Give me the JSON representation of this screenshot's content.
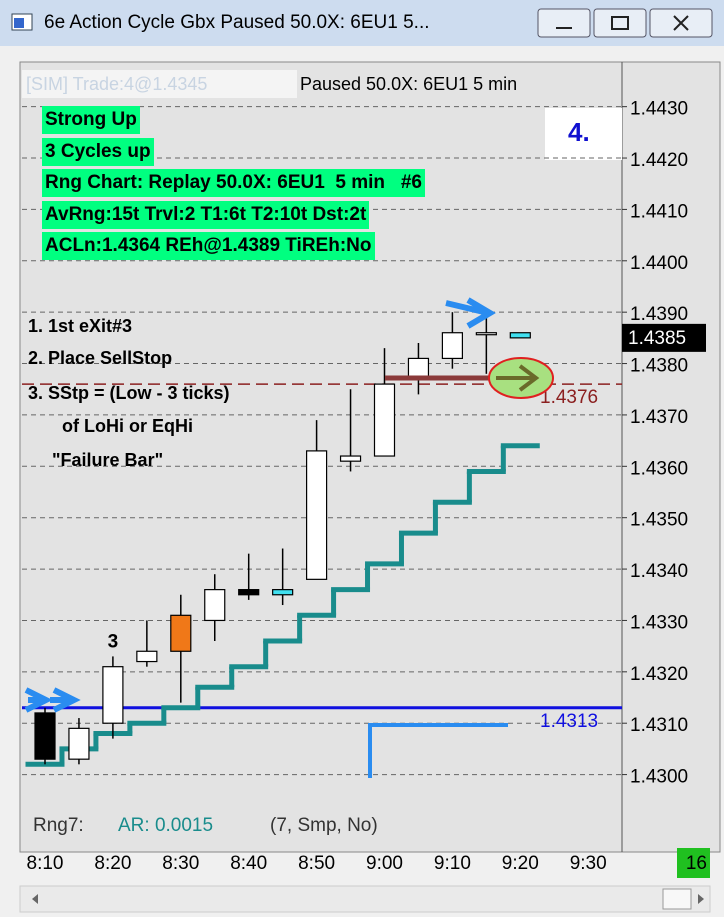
{
  "window": {
    "title": "6e Action Cycle Gbx  Paused 50.0X: 6EU1  5..."
  },
  "chart_data": {
    "type": "candlestick",
    "header": {
      "sim_trade": "[SIM]  Trade:4@1.4345",
      "status": "Paused 50.0X: 6EU1  5 min"
    },
    "info_lines": [
      "Strong Up",
      "3 Cycles up",
      "Rng Chart: Replay 50.0X: 6EU1  5 min   #6",
      "AvRng:15t Trvl:2 T1:6t T2:10t Dst:2t",
      "ACLn:1.4364 REh@1.4389 TiREh:No"
    ],
    "step_label": "4.",
    "annotations": [
      "1. 1st eXit#3",
      "2. Place SellStop",
      "3. SStp = (Low - 3 ticks)",
      "of LoHi or EqHi",
      "\"Failure Bar\""
    ],
    "bar_label": "3",
    "xticks": [
      "8:10",
      "8:20",
      "8:30",
      "8:40",
      "8:50",
      "9:00",
      "9:10",
      "9:20",
      "9:30"
    ],
    "candles": [
      {
        "o": 1.4312,
        "h": 1.4313,
        "l": 1.4302,
        "c": 1.4303,
        "color": "#000000"
      },
      {
        "o": 1.4303,
        "h": 1.4311,
        "l": 1.4302,
        "c": 1.4309,
        "color": "#ffffff"
      },
      {
        "o": 1.431,
        "h": 1.4323,
        "l": 1.4307,
        "c": 1.4321,
        "color": "#ffffff"
      },
      {
        "o": 1.4322,
        "h": 1.433,
        "l": 1.4321,
        "c": 1.4324,
        "color": "#ffffff"
      },
      {
        "o": 1.4331,
        "h": 1.4335,
        "l": 1.4314,
        "c": 1.4324,
        "color": "#f07818"
      },
      {
        "o": 1.433,
        "h": 1.4339,
        "l": 1.4326,
        "c": 1.4336,
        "color": "#ffffff"
      },
      {
        "o": 1.4336,
        "h": 1.4343,
        "l": 1.4334,
        "c": 1.4335,
        "color": "#000000"
      },
      {
        "o": 1.4336,
        "h": 1.4344,
        "l": 1.4333,
        "c": 1.4335,
        "color": "#40e0f0"
      },
      {
        "o": 1.4338,
        "h": 1.4369,
        "l": 1.4338,
        "c": 1.4363,
        "color": "#ffffff"
      },
      {
        "o": 1.4361,
        "h": 1.4375,
        "l": 1.4359,
        "c": 1.4362,
        "color": "#ffffff"
      },
      {
        "o": 1.4362,
        "h": 1.4383,
        "l": 1.4362,
        "c": 1.4376,
        "color": "#ffffff"
      },
      {
        "o": 1.4377,
        "h": 1.4384,
        "l": 1.4374,
        "c": 1.4381,
        "color": "#ffffff"
      },
      {
        "o": 1.4381,
        "h": 1.439,
        "l": 1.4379,
        "c": 1.4386,
        "color": "#ffffff"
      },
      {
        "o": 1.4386,
        "h": 1.4389,
        "l": 1.4378,
        "c": 1.4386,
        "color": "#ffffff"
      },
      {
        "o": 1.4386,
        "h": 1.4386,
        "l": 1.4385,
        "c": 1.4385,
        "color": "#40e0f0"
      }
    ],
    "ylim": [
      1.4297,
      1.4442
    ],
    "yticks": [
      {
        "value": 1.43,
        "label": "1.4300"
      },
      {
        "value": 1.431,
        "label": "1.4310"
      },
      {
        "value": 1.432,
        "label": "1.4320"
      },
      {
        "value": 1.433,
        "label": "1.4330"
      },
      {
        "value": 1.434,
        "label": "1.4340"
      },
      {
        "value": 1.435,
        "label": "1.4350"
      },
      {
        "value": 1.436,
        "label": "1.4360"
      },
      {
        "value": 1.437,
        "label": "1.4370"
      },
      {
        "value": 1.438,
        "label": "1.4380"
      },
      {
        "value": 1.439,
        "label": "1.4390"
      },
      {
        "value": 1.44,
        "label": "1.4400"
      },
      {
        "value": 1.441,
        "label": "1.4410"
      },
      {
        "value": 1.442,
        "label": "1.4420"
      },
      {
        "value": 1.443,
        "label": "1.4430"
      }
    ],
    "grid": true,
    "acln": {
      "color": "#198c8c",
      "values": [
        1.4302,
        1.4305,
        1.4308,
        1.431,
        1.4313,
        1.4317,
        1.4321,
        1.4326,
        1.4331,
        1.4336,
        1.4341,
        1.4347,
        1.4353,
        1.4359,
        1.4364
      ]
    },
    "levels": [
      {
        "value": 1.4313,
        "color": "#1010e0"
      },
      {
        "value": 1.4376,
        "color": "#8b2020"
      }
    ],
    "last_price": 1.4385,
    "footer": {
      "name": "Rng7:",
      "ar": "AR: 0.0015",
      "params": "(7, Smp, No)"
    },
    "bar_count": 16
  }
}
